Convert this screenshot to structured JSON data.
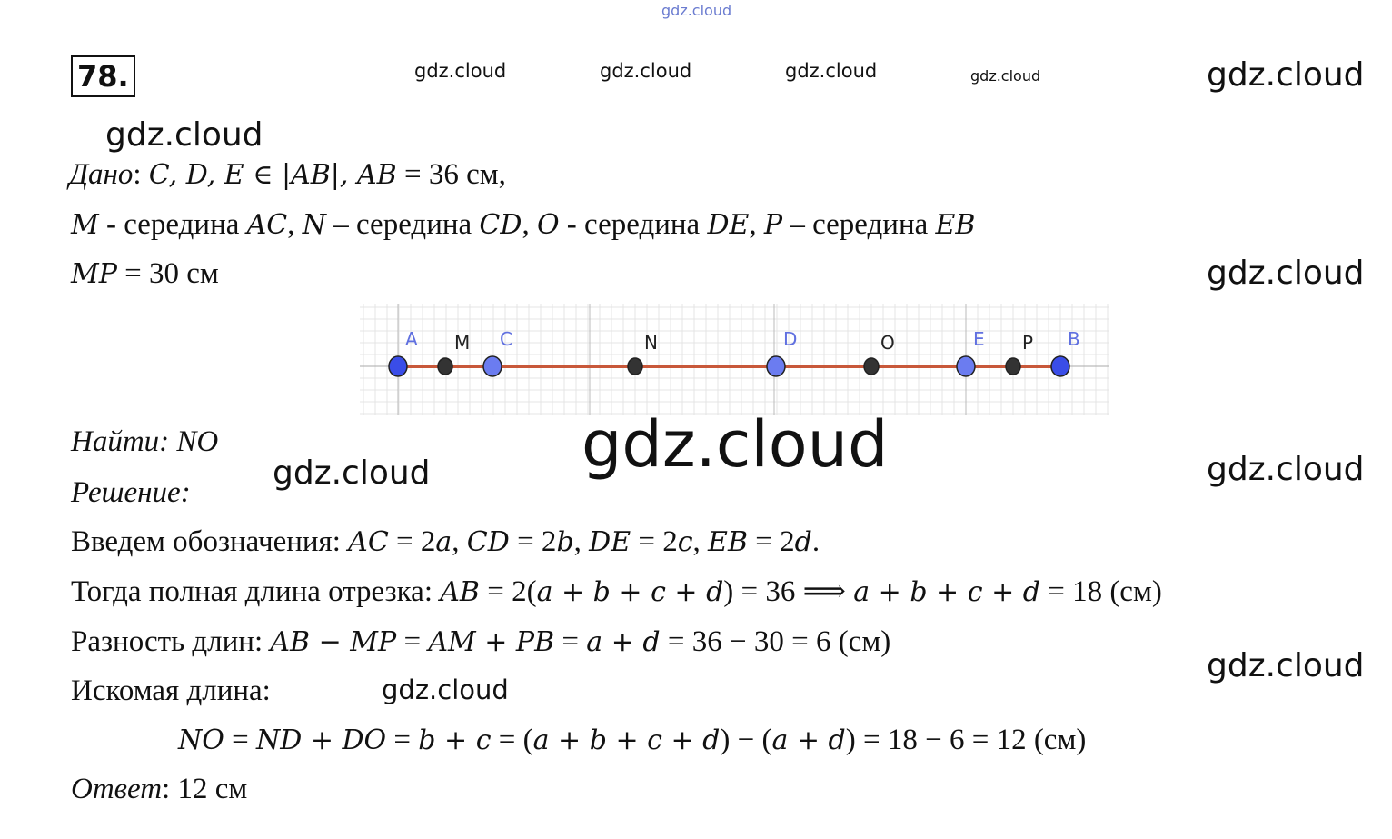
{
  "problem_number": "78.",
  "watermark": "gdz.cloud",
  "lines": [
    [
      {
        "t": "Дано",
        "s": "i"
      },
      {
        "t": ": "
      },
      {
        "t": "C, D, E ∈ |AB|,  AB",
        "s": "m"
      },
      {
        "t": " = 36 см,"
      }
    ],
    [
      {
        "t": "M",
        "s": "m"
      },
      {
        "t": " - середина "
      },
      {
        "t": "AC",
        "s": "m"
      },
      {
        "t": ", "
      },
      {
        "t": "N",
        "s": "m"
      },
      {
        "t": " – середина "
      },
      {
        "t": "CD",
        "s": "m"
      },
      {
        "t": ", "
      },
      {
        "t": "O",
        "s": "m"
      },
      {
        "t": " - середина "
      },
      {
        "t": "DE",
        "s": "m"
      },
      {
        "t": ", "
      },
      {
        "t": "P",
        "s": "m"
      },
      {
        "t": " – середина "
      },
      {
        "t": "EB",
        "s": "m"
      }
    ],
    [
      {
        "t": "MP",
        "s": "m"
      },
      {
        "t": " = 30 см"
      }
    ],
    [
      {
        "t": "Найти: NO",
        "s": "i"
      }
    ],
    [
      {
        "t": "Решение:",
        "s": "i"
      }
    ],
    [
      {
        "t": "Введем обозначения: "
      },
      {
        "t": "AC",
        "s": "m"
      },
      {
        "t": " = 2"
      },
      {
        "t": "a",
        "s": "m"
      },
      {
        "t": ", "
      },
      {
        "t": "CD",
        "s": "m"
      },
      {
        "t": " = 2"
      },
      {
        "t": "b",
        "s": "m"
      },
      {
        "t": ", "
      },
      {
        "t": "DE",
        "s": "m"
      },
      {
        "t": " = 2"
      },
      {
        "t": "c",
        "s": "m"
      },
      {
        "t": ", "
      },
      {
        "t": "EB",
        "s": "m"
      },
      {
        "t": " = 2"
      },
      {
        "t": "d",
        "s": "m"
      },
      {
        "t": "."
      }
    ],
    [
      {
        "t": "Тогда полная длина отрезка: "
      },
      {
        "t": "AB",
        "s": "m"
      },
      {
        "t": " = 2("
      },
      {
        "t": "a + b + c + d",
        "s": "m"
      },
      {
        "t": ") = 36 ⟹ "
      },
      {
        "t": "a + b + c + d",
        "s": "m"
      },
      {
        "t": " = 18 (см)"
      }
    ],
    [
      {
        "t": "Разность длин: "
      },
      {
        "t": "AB − MP",
        "s": "m"
      },
      {
        "t": " = "
      },
      {
        "t": "AM + PB",
        "s": "m"
      },
      {
        "t": " = "
      },
      {
        "t": "a + d",
        "s": "m"
      },
      {
        "t": " = 36 − 30 = 6 (см)"
      }
    ],
    [
      {
        "t": "Искомая длина:"
      }
    ],
    [
      {
        "t": "NO",
        "s": "m"
      },
      {
        "t": " = "
      },
      {
        "t": "ND + DO",
        "s": "m"
      },
      {
        "t": " = "
      },
      {
        "t": "b + c",
        "s": "m"
      },
      {
        "t": " = ("
      },
      {
        "t": "a + b + c + d",
        "s": "m"
      },
      {
        "t": ") − ("
      },
      {
        "t": "a + d",
        "s": "m"
      },
      {
        "t": ") = 18 − 6 = 12 (см)"
      }
    ],
    [
      {
        "t": "Ответ",
        "s": "i"
      },
      {
        "t": ": 12 см"
      }
    ]
  ],
  "diagram": {
    "points": [
      {
        "label": "A",
        "kind": "given"
      },
      {
        "label": "M",
        "kind": "mid"
      },
      {
        "label": "C",
        "kind": "given"
      },
      {
        "label": "N",
        "kind": "mid"
      },
      {
        "label": "D",
        "kind": "given"
      },
      {
        "label": "O",
        "kind": "mid"
      },
      {
        "label": "E",
        "kind": "given"
      },
      {
        "label": "P",
        "kind": "mid"
      },
      {
        "label": "B",
        "kind": "given"
      }
    ],
    "colors": {
      "segment": "#c8583a",
      "given": "#6b7cf0",
      "endpoint": "#3a4de8",
      "mid": "#333333",
      "given_label": "#6070e0",
      "mid_label": "#222222"
    }
  }
}
